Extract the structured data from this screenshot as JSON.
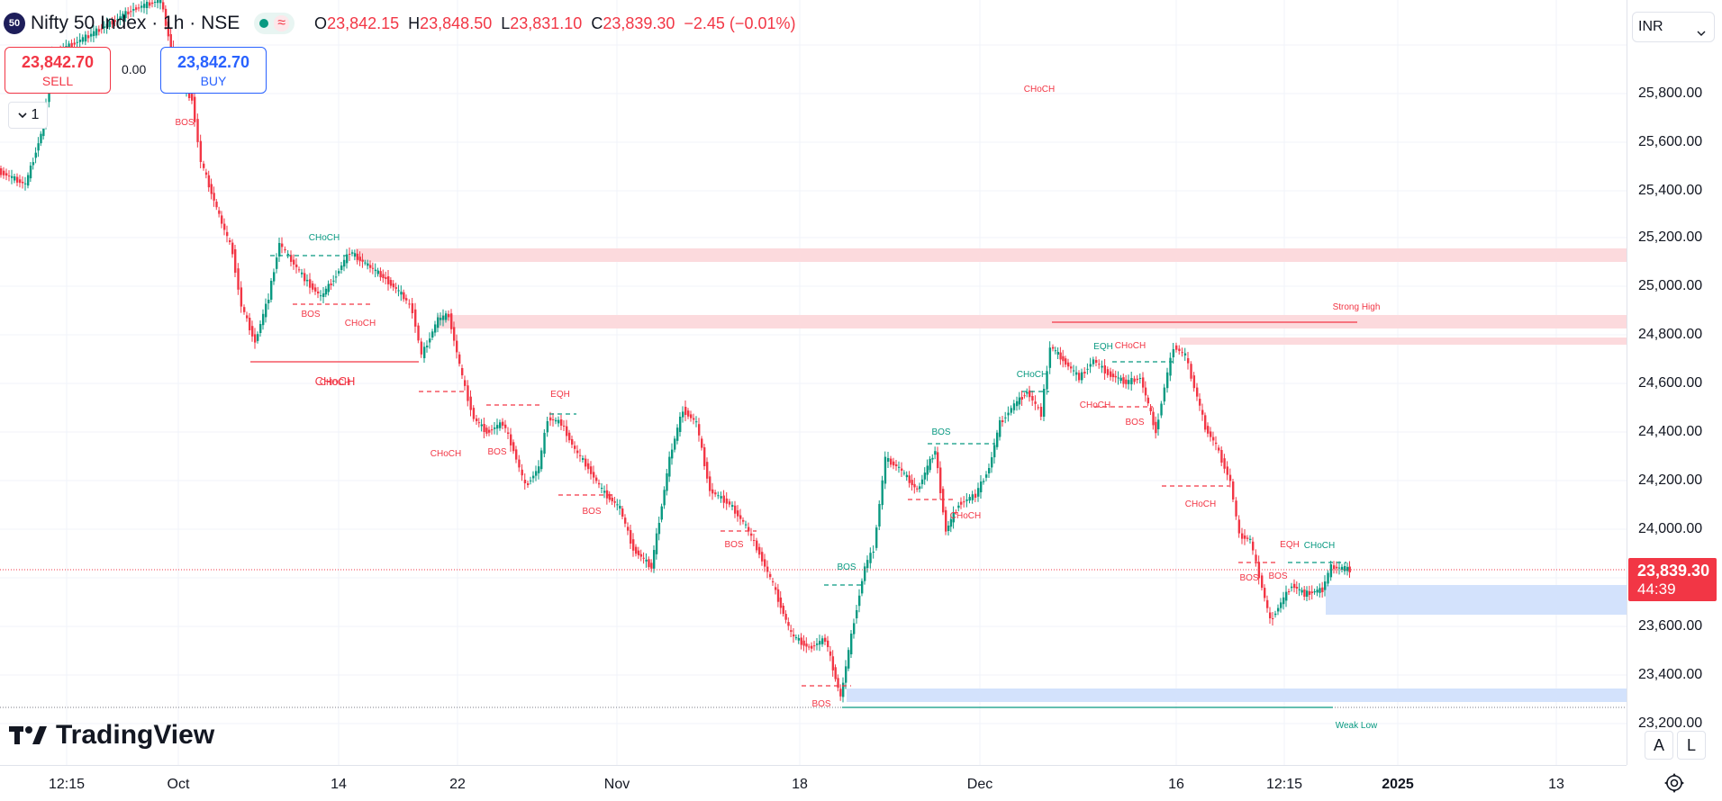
{
  "header": {
    "symbol_badge": "50",
    "title": "Nifty 50 Index · 1h · NSE",
    "status_icon": "wave-icon",
    "status_glyph": "≈",
    "ohlc": [
      {
        "label": "O",
        "value": "23,842.15"
      },
      {
        "label": "H",
        "value": "23,848.50"
      },
      {
        "label": "L",
        "value": "23,831.10"
      },
      {
        "label": "C",
        "value": "23,839.30"
      },
      {
        "label": "",
        "value": "−2.45 (−0.01%)"
      }
    ]
  },
  "trade": {
    "sell_price": "23,842.70",
    "sell_label": "SELL",
    "buy_price": "23,842.70",
    "buy_label": "BUY",
    "spread": "0.00",
    "quantity": "1"
  },
  "currency": "INR",
  "current_price": {
    "price": "23,839.30",
    "countdown": "44:39"
  },
  "price_axis": {
    "ticks": [
      "25,800.00",
      "25,600.00",
      "25,400.00",
      "25,200.00",
      "25,000.00",
      "24,800.00",
      "24,600.00",
      "24,400.00",
      "24,200.00",
      "24,000.00",
      "23,600.00",
      "23,400.00",
      "23,200.00"
    ]
  },
  "time_axis": {
    "ticks": [
      {
        "label": "12:15",
        "bold": false
      },
      {
        "label": "Oct",
        "bold": false
      },
      {
        "label": "14",
        "bold": false
      },
      {
        "label": "22",
        "bold": false
      },
      {
        "label": "Nov",
        "bold": false
      },
      {
        "label": "18",
        "bold": false
      },
      {
        "label": "Dec",
        "bold": false
      },
      {
        "label": "16",
        "bold": false
      },
      {
        "label": "12:15",
        "bold": false
      },
      {
        "label": "2025",
        "bold": true
      },
      {
        "label": "13",
        "bold": false
      }
    ]
  },
  "annotations": {
    "strong_high": "Strong High",
    "weak_low": "Weak Low",
    "labels": [
      "CHoCH",
      "BOS",
      "BOS",
      "CHoCH",
      "CHoCH",
      "CHoCH",
      "BOS",
      "BOS",
      "EQH",
      "BOS",
      "BOS",
      "BOS",
      "CHoCH",
      "BOS",
      "CHoCH",
      "CHoCH",
      "BOS",
      "EQH",
      "CHoCH",
      "CHoCH",
      "BOS",
      "CHoCH",
      "BOS",
      "EQH",
      "CHoCH"
    ]
  },
  "branding": {
    "logo_text": "TradingView"
  },
  "controls": {
    "auto_label": "A",
    "log_label": "L"
  },
  "colors": {
    "up": "#089981",
    "down": "#f23645",
    "supply": "#fddde0",
    "demand": "#d6e4fd"
  }
}
